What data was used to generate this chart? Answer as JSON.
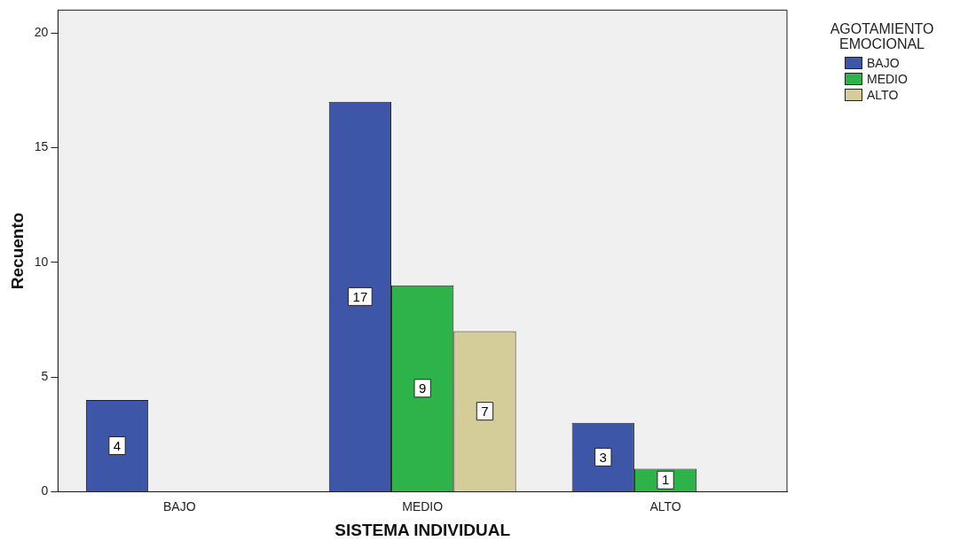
{
  "chart_data": {
    "type": "bar",
    "xlabel": "SISTEMA INDIVIDUAL",
    "ylabel": "Recuento",
    "legend_title": "AGOTAMIENTO EMOCIONAL",
    "categories": [
      "BAJO",
      "MEDIO",
      "ALTO"
    ],
    "series": [
      {
        "name": "BAJO",
        "color": "#3e56a8",
        "values": [
          4,
          17,
          3
        ]
      },
      {
        "name": "MEDIO",
        "color": "#2db34a",
        "values": [
          null,
          9,
          1
        ]
      },
      {
        "name": "ALTO",
        "color": "#d5cd99",
        "values": [
          null,
          7,
          null
        ]
      }
    ],
    "ylim": [
      0,
      21
    ],
    "yticks": [
      0,
      5,
      10,
      15,
      20
    ],
    "grid": false,
    "legend": "top right",
    "data_labels": true
  }
}
